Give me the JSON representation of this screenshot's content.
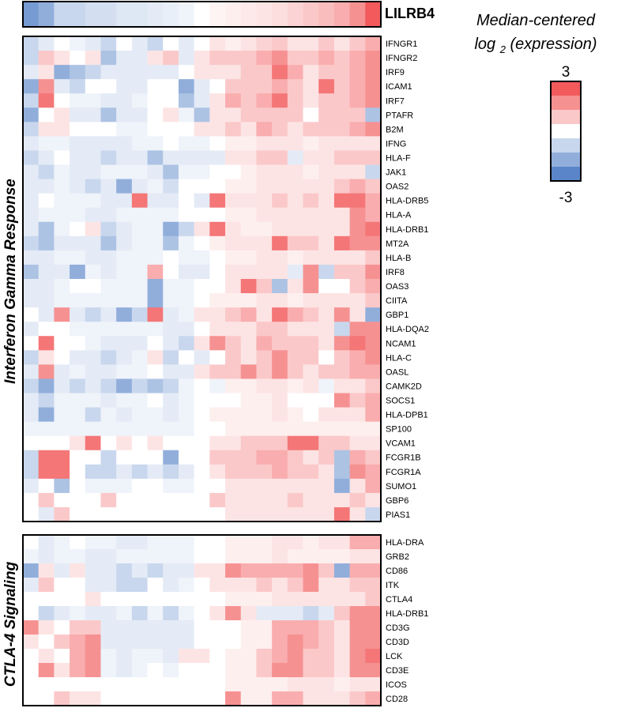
{
  "chart_data": [
    {
      "type": "heatmap",
      "title": "LILRB4",
      "rows": [
        "LILRB4"
      ],
      "values": [
        [
          -2.5,
          -2,
          -1,
          -1,
          -0.8,
          -0.8,
          -0.6,
          -0.6,
          -0.5,
          -0.4,
          -0.3,
          0,
          0.2,
          0.3,
          0.4,
          0.5,
          0.6,
          0.8,
          1,
          1.2,
          1.5,
          2,
          3
        ]
      ]
    },
    {
      "type": "heatmap",
      "title": "Interferon Gamma Response",
      "rows": [
        "IFNGR1",
        "IFNGR2",
        "IRF9",
        "ICAM1",
        "IRF7",
        "PTAFR",
        "B2M",
        "IFNG",
        "HLA-F",
        "JAK1",
        "OAS2",
        "HLA-DRB5",
        "HLA-A",
        "HLA-DRB1",
        "MT2A",
        "HLA-B",
        "IRF8",
        "OAS3",
        "CIITA",
        "GBP1",
        "HLA-DQA2",
        "NCAM1",
        "HLA-C",
        "OASL",
        "CAMK2D",
        "SOCS1",
        "HLA-DPB1",
        "SP100",
        "VCAM1",
        "FCGR1B",
        "FCGR1A",
        "SUMO1",
        "GBP6",
        "PIAS1"
      ],
      "values": [
        [
          -1,
          -0.5,
          0,
          -0.3,
          -0.5,
          -1,
          0,
          -0.5,
          -1,
          0,
          -0.5,
          0,
          0.5,
          0.3,
          0.5,
          0.8,
          1,
          0.5,
          0.5,
          1,
          0.5,
          1,
          1.5
        ],
        [
          -1,
          1,
          0.5,
          0,
          0.5,
          -1.5,
          -0.5,
          -0.5,
          0.5,
          1,
          -0.5,
          0.5,
          1,
          1,
          1,
          1.5,
          2,
          1,
          1,
          1.5,
          1,
          1.5,
          2
        ],
        [
          -0.5,
          0.5,
          -2,
          -1.5,
          -1,
          -0.5,
          -0.5,
          -0.5,
          -0.5,
          -0.5,
          0,
          0.5,
          0.5,
          0.5,
          1,
          1,
          2.5,
          1.5,
          0.5,
          1,
          1,
          1.5,
          2
        ],
        [
          -2,
          2,
          -0.5,
          -1,
          0,
          0,
          -0.5,
          -0.5,
          0,
          0,
          -2,
          -0.5,
          0,
          1,
          1,
          1,
          1.5,
          1,
          0.5,
          2.5,
          1,
          1.5,
          2
        ],
        [
          -1,
          2.5,
          0,
          -0.3,
          -0.3,
          -0.5,
          -0.5,
          -0.3,
          0,
          0,
          -1.5,
          -0.5,
          0.5,
          1.5,
          1,
          1.5,
          2.5,
          1,
          0.5,
          1,
          1,
          1.5,
          2
        ],
        [
          -2,
          0,
          0.5,
          -0.5,
          -0.5,
          -1.5,
          -0.5,
          -0.5,
          0,
          0.5,
          -0.3,
          -1.5,
          0.5,
          0.5,
          1,
          1,
          1,
          1,
          0,
          1,
          1,
          1,
          -1.5
        ],
        [
          -1,
          0.5,
          0.5,
          0,
          0,
          0,
          -0.3,
          -0.3,
          0,
          0,
          0,
          0.5,
          0.5,
          1,
          0.5,
          1.5,
          1,
          0.5,
          1,
          1,
          1,
          1.5,
          2
        ],
        [
          -0.5,
          -0.3,
          -0.3,
          -0.5,
          -0.5,
          -0.5,
          -0.5,
          -0.3,
          -0.3,
          0,
          -0.3,
          -0.3,
          0,
          0.3,
          0.3,
          0.5,
          0.5,
          0.5,
          0.3,
          0.5,
          0.5,
          0.5,
          0.5
        ],
        [
          -1,
          -0.5,
          0,
          -0.5,
          -0.5,
          -1,
          -0.5,
          -0.5,
          -1.5,
          -0.5,
          -0.5,
          -0.5,
          -0.5,
          0.5,
          0.5,
          1,
          1,
          -0.5,
          0.5,
          0.5,
          1,
          1,
          1
        ],
        [
          -0.5,
          -1,
          -0.3,
          -0.5,
          -0.5,
          -0.3,
          -0.3,
          -0.3,
          -0.5,
          -1.5,
          -0.3,
          -0.3,
          0,
          0,
          0.3,
          0.5,
          0.5,
          0.5,
          0.3,
          0.5,
          0.5,
          0.5,
          -1
        ],
        [
          -0.5,
          -0.5,
          -0.3,
          -0.5,
          -1,
          -0.5,
          -2,
          -0.5,
          -0.3,
          -0.8,
          0,
          0,
          0,
          0.3,
          0.3,
          0.5,
          0.5,
          0.5,
          0.5,
          0.5,
          1,
          1.5,
          1
        ],
        [
          -0.5,
          0,
          -0.3,
          -0.3,
          -0.3,
          -0.5,
          -0.5,
          2.5,
          -0.5,
          -0.5,
          0,
          -0.5,
          2.5,
          0.5,
          0.5,
          0.5,
          1,
          0.5,
          1,
          0.5,
          2.5,
          2.5,
          1.5
        ],
        [
          -0.5,
          -0.3,
          -0.3,
          -0.3,
          -0.5,
          -0.5,
          -0.3,
          -0.3,
          -0.3,
          -0.3,
          0,
          0,
          0,
          0.3,
          0.3,
          0.5,
          0.5,
          0.5,
          0.5,
          0.5,
          0.5,
          2,
          1.5
        ],
        [
          -0.5,
          -1.5,
          -0.3,
          0,
          0.5,
          -1,
          -0.5,
          -0.3,
          -0.3,
          -2,
          -1,
          0.5,
          2.5,
          0.5,
          0.3,
          0.3,
          0.5,
          0.5,
          0.5,
          0.5,
          0.5,
          2,
          2.5
        ],
        [
          -1,
          -1.5,
          -0.5,
          -0.5,
          -0.5,
          -1.5,
          -0.5,
          -0.3,
          -0.3,
          -1.5,
          -0.3,
          0,
          0.3,
          0.5,
          0.5,
          0.5,
          2.5,
          1,
          1,
          0.5,
          2.5,
          2,
          2
        ],
        [
          -0.5,
          -0.5,
          -0.3,
          -0.3,
          -0.5,
          -0.5,
          -0.3,
          -0.3,
          -0.3,
          0,
          -0.3,
          -0.3,
          0,
          0.3,
          0.3,
          0.5,
          0.5,
          0.3,
          0.5,
          0.5,
          0.5,
          0.5,
          1
        ],
        [
          -1.5,
          -0.5,
          -0.5,
          -2,
          -0.3,
          -0.5,
          -0.3,
          -0.3,
          1.5,
          0,
          -0.5,
          -0.5,
          0,
          0.5,
          0.5,
          0.5,
          0.5,
          -0.5,
          2,
          -1,
          1,
          1,
          2
        ],
        [
          -0.5,
          -0.5,
          -0.3,
          0,
          0,
          -0.3,
          -0.3,
          -0.3,
          -2,
          -0.3,
          -0.3,
          0,
          0,
          0.5,
          2.5,
          1,
          -1.5,
          0.5,
          2,
          0,
          0,
          1,
          1.5
        ],
        [
          -0.5,
          -0.5,
          -0.3,
          -0.3,
          -0.3,
          -0.3,
          -0.3,
          -0.3,
          -2,
          -0.3,
          -0.3,
          0,
          0.3,
          0.3,
          0.3,
          0.5,
          0.5,
          0.3,
          0.5,
          0.5,
          0.5,
          0.5,
          1
        ],
        [
          0,
          -0.5,
          2,
          -0.5,
          -1,
          -0.5,
          -2,
          -1,
          2.5,
          -0.5,
          -0.3,
          0.5,
          0.5,
          1,
          1.5,
          0.5,
          2.5,
          1.5,
          1,
          0.5,
          2,
          0.5,
          -2
        ],
        [
          -0.5,
          0,
          0,
          -0.3,
          -0.3,
          -0.3,
          -0.3,
          -0.3,
          -0.3,
          -0.5,
          -0.5,
          0,
          0.5,
          0.5,
          0.5,
          1,
          1,
          0.5,
          0.5,
          0.5,
          -1,
          2,
          2
        ],
        [
          0,
          2.5,
          0,
          0,
          -0.3,
          -0.5,
          -0.5,
          -0.5,
          0,
          -0.5,
          -1,
          0.5,
          2,
          1,
          0.5,
          1.5,
          1,
          1,
          1,
          0.5,
          2,
          2.5,
          2
        ],
        [
          -1,
          0.5,
          0,
          -0.5,
          -0.5,
          -1,
          -0.5,
          -0.3,
          0.5,
          -1,
          0,
          -0.5,
          0,
          1,
          0.5,
          1,
          2,
          1,
          1,
          0,
          1,
          1.5,
          2
        ],
        [
          -0.5,
          2,
          -0.5,
          -0.3,
          -0.5,
          -0.5,
          -0.3,
          -0.3,
          0,
          -0.5,
          -0.5,
          0.5,
          1,
          1,
          2,
          1,
          2,
          1,
          0.5,
          1,
          1,
          1.5,
          1.5
        ],
        [
          -1,
          -2,
          -0.5,
          -1,
          -0.5,
          -1,
          -2,
          -1,
          -1.5,
          -1,
          -0.3,
          0,
          -0.3,
          0.3,
          0.3,
          0.5,
          0.5,
          0.3,
          0.5,
          -0.3,
          0.5,
          0.5,
          1
        ],
        [
          -0.5,
          -1,
          -0.3,
          -0.3,
          -0.3,
          -0.5,
          -0.3,
          -0.3,
          0,
          -0.5,
          -0.3,
          0,
          0,
          0,
          0.3,
          0.3,
          0.5,
          0,
          0,
          0,
          2,
          1,
          1.5
        ],
        [
          -0.5,
          -2,
          -0.3,
          -0.3,
          -1,
          -0.3,
          -0.5,
          -0.3,
          -0.3,
          -0.5,
          -0.3,
          0,
          0.3,
          0.3,
          0.3,
          0.3,
          0.5,
          0.3,
          0,
          0.5,
          0.5,
          0.5,
          1.5
        ],
        [
          -0.3,
          -0.3,
          -0.3,
          -0.3,
          -0.3,
          -0.3,
          -0.3,
          -0.3,
          -0.3,
          -0.3,
          -0.3,
          0,
          0,
          0.3,
          0.3,
          0.3,
          0.3,
          0.3,
          0.3,
          0.3,
          0.3,
          0.3,
          0.3
        ],
        [
          0,
          0,
          0,
          0.5,
          2.5,
          0,
          0.5,
          0,
          0.5,
          0,
          0,
          0,
          0.5,
          0.5,
          1,
          1,
          1,
          2.5,
          2.5,
          1,
          1,
          0.5,
          0.5
        ],
        [
          -1,
          2.5,
          2.5,
          0,
          0,
          -1,
          0,
          0,
          0,
          -2,
          0,
          0,
          1,
          1,
          1,
          1.5,
          1.5,
          1,
          0.5,
          1,
          -1.5,
          1.5,
          1
        ],
        [
          -1,
          2.5,
          2.5,
          0,
          -1,
          -1,
          -0.5,
          -1,
          -0.5,
          -1,
          -0.5,
          0,
          0.5,
          1,
          1,
          1,
          1.5,
          1,
          1,
          0.5,
          -1.5,
          2,
          1.5
        ],
        [
          -0.5,
          0,
          -1.5,
          0,
          -0.3,
          -0.3,
          -0.3,
          0,
          0,
          -0.3,
          -0.3,
          0,
          0,
          0.5,
          0.5,
          0.5,
          0.5,
          0.5,
          0.5,
          0.5,
          -2,
          0.5,
          1.5
        ],
        [
          0,
          1,
          0,
          0,
          0,
          1,
          0,
          0,
          0,
          0,
          0,
          0,
          1,
          0.5,
          0.5,
          0.5,
          0.5,
          1,
          0.5,
          0.5,
          0.5,
          1,
          0.5
        ],
        [
          0,
          -0.5,
          1,
          0,
          0,
          0,
          0,
          0,
          0,
          0,
          0,
          0,
          0,
          0.5,
          0.5,
          0.5,
          0.5,
          0.5,
          0.5,
          0.5,
          2.5,
          0.5,
          -1
        ]
      ]
    },
    {
      "type": "heatmap",
      "title": "CTLA-4 Signaling",
      "rows": [
        "HLA-DRA",
        "GRB2",
        "CD86",
        "ITK",
        "CTLA4",
        "HLA-DRB1",
        "CD3G",
        "CD3D",
        "LCK",
        "CD3E",
        "ICOS",
        "CD28"
      ],
      "values": [
        [
          0,
          -0.5,
          -0.3,
          0,
          -0.3,
          -0.3,
          -0.5,
          -0.5,
          -0.3,
          -0.3,
          -0.3,
          0,
          0,
          0.3,
          0.3,
          0.3,
          0.5,
          0.5,
          0.3,
          0.5,
          0.5,
          1.5,
          1.5
        ],
        [
          -0.3,
          -0.5,
          -0.3,
          -0.3,
          -0.5,
          -0.5,
          -0.3,
          -0.3,
          -0.3,
          -0.3,
          -0.3,
          0,
          0,
          0.3,
          0.3,
          0.3,
          0.5,
          0.3,
          0.3,
          0.3,
          0.3,
          0.5,
          0.5
        ],
        [
          -2,
          0.5,
          -0.5,
          0.5,
          -0.5,
          -0.5,
          -1,
          -0.5,
          -1,
          -0.5,
          -0.5,
          0.5,
          0.5,
          2,
          1.5,
          1.5,
          1.5,
          1.5,
          2,
          1,
          -2,
          1.5,
          1.5
        ],
        [
          -0.5,
          1,
          0,
          0,
          -0.5,
          -0.5,
          -1,
          -1,
          0,
          -0.5,
          -0.3,
          0,
          0.5,
          0.5,
          0.5,
          1,
          0.5,
          1,
          2,
          0.5,
          0.5,
          1,
          1
        ],
        [
          0,
          0,
          0,
          0,
          0.5,
          0,
          0,
          0,
          0,
          0,
          0,
          0,
          0,
          0.3,
          0.3,
          0.3,
          0.5,
          0.5,
          0.5,
          0.5,
          0.5,
          0.5,
          1
        ],
        [
          0,
          -1,
          -0.5,
          -0.3,
          -0.5,
          -0.5,
          -0.3,
          -1,
          -0.3,
          -1,
          -0.3,
          0,
          0.5,
          2,
          0.5,
          -0.5,
          -0.5,
          -0.5,
          -1,
          -0.5,
          1,
          2,
          2
        ],
        [
          2,
          0.5,
          0,
          1,
          1,
          -0.5,
          -0.5,
          -0.5,
          -0.5,
          -0.5,
          -0.5,
          0,
          0,
          0,
          0.3,
          0.3,
          1.5,
          1.5,
          1.5,
          1,
          0.5,
          2,
          2
        ],
        [
          0.5,
          0,
          1,
          1.5,
          2,
          -0.5,
          -0.5,
          -0.5,
          -0.5,
          -0.5,
          -0.5,
          0,
          0,
          0,
          0.3,
          0.3,
          1.5,
          2,
          1.5,
          1,
          0.5,
          2,
          2
        ],
        [
          0,
          0.5,
          0,
          1.5,
          2,
          -0.3,
          -0.5,
          -0.3,
          -0.3,
          -0.5,
          0.5,
          0.5,
          0,
          0.3,
          0.3,
          1,
          1.5,
          2,
          1,
          1,
          0.5,
          2,
          2.5
        ],
        [
          0,
          2,
          0.5,
          1.5,
          2,
          -0.3,
          -0.5,
          -0.3,
          0,
          -0.3,
          0,
          0,
          0,
          0.3,
          0.3,
          1,
          2,
          2,
          1,
          1,
          0.5,
          2,
          2
        ],
        [
          0,
          0,
          0,
          0,
          0,
          0,
          0,
          0,
          0,
          0,
          0,
          0,
          0,
          0.3,
          0.3,
          0.3,
          0.3,
          0.5,
          0.5,
          0.5,
          0.3,
          0.5,
          0.5
        ],
        [
          0,
          0,
          1,
          0.5,
          0.5,
          0,
          0,
          0,
          0,
          0,
          0,
          0,
          0,
          2,
          0.3,
          0.3,
          1.5,
          1.5,
          0.5,
          0.5,
          0.5,
          1,
          1.5
        ]
      ]
    }
  ],
  "legend": {
    "title_line1": "Median-centered",
    "title_line2_prefix": "log ",
    "title_line2_sub": "2",
    "title_line2_suffix": " (expression)",
    "max_label": "3",
    "min_label": "-3",
    "levels": [
      3,
      2,
      1,
      0,
      -1,
      -2,
      -3
    ]
  },
  "colors": {
    "high": "#f25a5c",
    "mid": "#ffffff",
    "low": "#5a86c9"
  }
}
